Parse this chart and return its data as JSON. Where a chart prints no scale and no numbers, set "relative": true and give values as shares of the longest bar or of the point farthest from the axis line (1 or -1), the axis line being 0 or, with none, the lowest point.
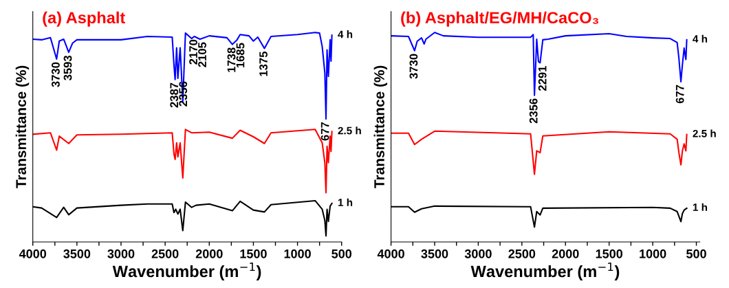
{
  "chart_data": [
    {
      "type": "line",
      "title": "(a) Asphalt",
      "xlabel": "Wavenumber (m$^{−1}$)",
      "ylabel": "Transmittance (%)",
      "relative": true,
      "legend": false,
      "grid": false,
      "tick_labels": "x",
      "xlim": [
        4000,
        500
      ],
      "xticks": [
        4000,
        {
          "value": 3750,
          "label": null
        },
        3500,
        {
          "value": 3250,
          "label": null
        },
        3000,
        {
          "value": 2750,
          "label": null
        },
        2500,
        {
          "value": 2250,
          "label": null
        },
        2000,
        {
          "value": 1750,
          "label": null
        },
        1500,
        {
          "value": 1250,
          "label": null
        },
        1000,
        {
          "value": 750,
          "label": null
        },
        500
      ],
      "series": [
        {
          "name": "4 h",
          "color": "#0000ff",
          "x": [
            4000,
            3900,
            3800,
            3730,
            3700,
            3650,
            3593,
            3550,
            3500,
            3000,
            2700,
            2420,
            2400,
            2387,
            2370,
            2356,
            2330,
            2300,
            2270,
            2200,
            2170,
            2105,
            2000,
            1800,
            1738,
            1685,
            1650,
            1550,
            1500,
            1450,
            1375,
            1300,
            1000,
            800,
            750,
            720,
            690,
            677,
            665,
            650,
            630,
            620,
            610
          ],
          "values": [
            0.968,
            0.965,
            0.975,
            0.873,
            0.959,
            0.968,
            0.905,
            0.949,
            0.965,
            0.965,
            0.981,
            0.978,
            0.844,
            0.775,
            0.927,
            0.781,
            0.927,
            0.67,
            0.997,
            0.971,
            0.981,
            0.968,
            0.984,
            0.975,
            0.943,
            0.965,
            0.99,
            0.984,
            0.959,
            0.978,
            0.924,
            0.981,
            0.99,
            1.0,
            0.997,
            0.933,
            0.806,
            0.587,
            0.917,
            0.79,
            0.965,
            0.863,
            0.987
          ]
        },
        {
          "name": "2.5 h",
          "color": "#ff0000",
          "x": [
            4000,
            3800,
            3730,
            3700,
            3593,
            3500,
            3000,
            2420,
            2400,
            2387,
            2370,
            2356,
            2330,
            2300,
            2270,
            2200,
            2000,
            1738,
            1650,
            1500,
            1375,
            1300,
            800,
            720,
            690,
            677,
            665,
            650,
            630,
            620,
            610
          ],
          "values": [
            0.514,
            0.521,
            0.438,
            0.505,
            0.47,
            0.511,
            0.514,
            0.521,
            0.419,
            0.394,
            0.473,
            0.406,
            0.473,
            0.305,
            0.537,
            0.521,
            0.524,
            0.495,
            0.533,
            0.502,
            0.47,
            0.521,
            0.537,
            0.473,
            0.378,
            0.235,
            0.457,
            0.378,
            0.505,
            0.432,
            0.527
          ]
        },
        {
          "name": "1 h",
          "color": "#000000",
          "x": [
            4000,
            3900,
            3730,
            3650,
            3593,
            3500,
            3000,
            2700,
            2420,
            2400,
            2380,
            2356,
            2330,
            2300,
            2270,
            2200,
            2150,
            2000,
            1738,
            1650,
            1500,
            1375,
            1300,
            800,
            720,
            690,
            677,
            665,
            650,
            630,
            610
          ],
          "values": [
            0.168,
            0.162,
            0.117,
            0.165,
            0.13,
            0.162,
            0.175,
            0.181,
            0.181,
            0.14,
            0.156,
            0.133,
            0.156,
            0.054,
            0.19,
            0.165,
            0.175,
            0.181,
            0.149,
            0.194,
            0.152,
            0.143,
            0.178,
            0.197,
            0.156,
            0.102,
            0.029,
            0.156,
            0.098,
            0.171,
            0.184
          ]
        }
      ],
      "annotations": [
        {
          "text": "3730",
          "x": 3730,
          "y": 0.873
        },
        {
          "text": "3593",
          "x": 3593,
          "y": 0.905
        },
        {
          "text": "2387",
          "x": 2387,
          "y": 0.775
        },
        {
          "text": "2356",
          "x": 2356,
          "y": 0.781
        },
        {
          "text": "2170",
          "x": 2170,
          "y": 0.981
        },
        {
          "text": "2105",
          "x": 2105,
          "y": 0.968
        },
        {
          "text": "1738",
          "x": 1738,
          "y": 0.943
        },
        {
          "text": "1685",
          "x": 1685,
          "y": 0.965
        },
        {
          "text": "1375",
          "x": 1375,
          "y": 0.924
        },
        {
          "text": "677",
          "x": 677,
          "y": 0.587
        }
      ]
    },
    {
      "type": "line",
      "title": "(b) Asphalt/EG/MH/CaCO₃",
      "xlabel": "Wavenumber (m$^{−1}$)",
      "ylabel": "Transmittance (%)",
      "relative": true,
      "legend": false,
      "grid": false,
      "tick_labels": "x",
      "xlim": [
        4000,
        460
      ],
      "xticks": [
        4000,
        {
          "value": 3750,
          "label": null
        },
        3500,
        {
          "value": 3250,
          "label": null
        },
        3000,
        {
          "value": 2750,
          "label": null
        },
        2500,
        {
          "value": 2250,
          "label": null
        },
        2000,
        {
          "value": 1750,
          "label": null
        },
        1500,
        {
          "value": 1250,
          "label": null
        },
        1000,
        {
          "value": 750,
          "label": null
        },
        500
      ],
      "series": [
        {
          "name": "4 h",
          "color": "#0000ff",
          "x": [
            4000,
            3800,
            3730,
            3700,
            3650,
            3620,
            3600,
            3500,
            3400,
            3000,
            2400,
            2370,
            2356,
            2330,
            2310,
            2291,
            2260,
            2200,
            2000,
            1500,
            1300,
            1000,
            800,
            720,
            700,
            677,
            660,
            640,
            620,
            610
          ],
          "values": [
            0.984,
            0.981,
            0.913,
            0.958,
            0.974,
            0.945,
            0.968,
            1.0,
            0.984,
            0.977,
            0.977,
            0.99,
            0.7,
            0.968,
            0.861,
            0.855,
            0.965,
            0.968,
            0.984,
            0.994,
            0.981,
            0.974,
            0.971,
            0.952,
            0.877,
            0.765,
            0.845,
            0.926,
            0.871,
            0.965
          ]
        },
        {
          "name": "2.5 h",
          "color": "#ff0000",
          "x": [
            4000,
            3800,
            3730,
            3650,
            3500,
            2400,
            2356,
            2330,
            2291,
            2260,
            1500,
            800,
            720,
            700,
            677,
            660,
            640,
            620,
            610
          ],
          "values": [
            0.519,
            0.519,
            0.465,
            0.49,
            0.529,
            0.516,
            0.323,
            0.435,
            0.426,
            0.506,
            0.526,
            0.516,
            0.49,
            0.426,
            0.368,
            0.435,
            0.468,
            0.435,
            0.513
          ]
        },
        {
          "name": "1 h",
          "color": "#000000",
          "x": [
            4000,
            3800,
            3730,
            3650,
            3500,
            2400,
            2356,
            2330,
            2291,
            2260,
            1000,
            800,
            720,
            677,
            660,
            640,
            610
          ],
          "values": [
            0.168,
            0.168,
            0.142,
            0.158,
            0.171,
            0.168,
            0.071,
            0.145,
            0.129,
            0.161,
            0.165,
            0.161,
            0.145,
            0.097,
            0.135,
            0.152,
            0.161
          ]
        }
      ],
      "annotations": [
        {
          "text": "3730",
          "x": 3730,
          "y": 0.913
        },
        {
          "text": "2356",
          "x": 2356,
          "y": 0.7
        },
        {
          "text": "2291",
          "x": 2291,
          "y": 0.855
        },
        {
          "text": "677",
          "x": 677,
          "y": 0.765
        }
      ]
    }
  ]
}
